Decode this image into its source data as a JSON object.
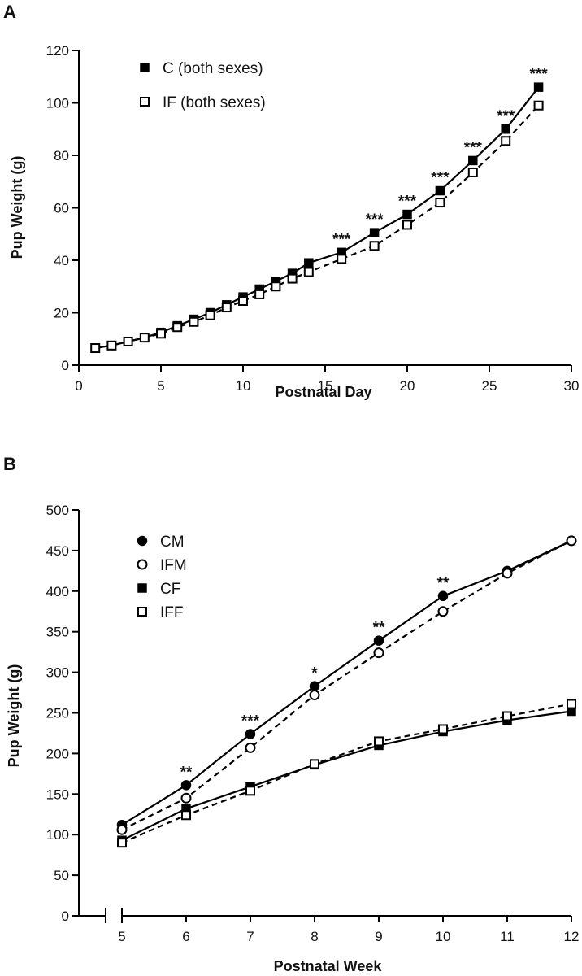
{
  "chart_data": [
    {
      "panel": "A",
      "type": "line",
      "xlabel": "Postnatal Day",
      "ylabel": "Pup Weight (g)",
      "xlim": [
        0,
        30
      ],
      "ylim": [
        0,
        120
      ],
      "xticks": [
        0,
        5,
        10,
        15,
        20,
        25,
        30
      ],
      "yticks": [
        0,
        20,
        40,
        60,
        80,
        100,
        120
      ],
      "grid": false,
      "legend_position": "top-left",
      "series": [
        {
          "name": "C (both sexes)",
          "marker": "filled-square",
          "line": "solid",
          "x": [
            1,
            2,
            3,
            4,
            5,
            6,
            7,
            8,
            9,
            10,
            11,
            12,
            13,
            14,
            16,
            18,
            20,
            22,
            24,
            26,
            28
          ],
          "y": [
            6.5,
            7.5,
            9,
            10.5,
            12.5,
            15,
            17.5,
            20,
            23,
            26,
            29,
            32,
            35,
            39,
            43,
            50.5,
            57.5,
            66.5,
            78,
            90,
            106
          ]
        },
        {
          "name": "IF (both sexes)",
          "marker": "open-square",
          "line": "dashed",
          "x": [
            1,
            2,
            3,
            4,
            5,
            6,
            7,
            8,
            9,
            10,
            11,
            12,
            13,
            14,
            16,
            18,
            20,
            22,
            24,
            26,
            28
          ],
          "y": [
            6.5,
            7.5,
            9,
            10.5,
            12,
            14.5,
            16.5,
            19,
            22,
            24.5,
            27,
            30,
            33,
            35.5,
            40.5,
            45.5,
            53.5,
            62,
            73.5,
            85.5,
            99
          ]
        }
      ],
      "annotations": [
        {
          "x": 16,
          "y": 43,
          "text": "***"
        },
        {
          "x": 18,
          "y": 50.5,
          "text": "***"
        },
        {
          "x": 20,
          "y": 57.5,
          "text": "***"
        },
        {
          "x": 22,
          "y": 66.5,
          "text": "***"
        },
        {
          "x": 24,
          "y": 78,
          "text": "***"
        },
        {
          "x": 26,
          "y": 90,
          "text": "***"
        },
        {
          "x": 28,
          "y": 106,
          "text": "***"
        }
      ]
    },
    {
      "panel": "B",
      "type": "line",
      "xlabel": "Postnatal Week",
      "ylabel": "Pup Weight (g)",
      "xlim": [
        4,
        12
      ],
      "ylim": [
        0,
        500
      ],
      "axis_break_x": true,
      "xticks": [
        5,
        6,
        7,
        8,
        9,
        10,
        11,
        12
      ],
      "yticks": [
        0,
        50,
        100,
        150,
        200,
        250,
        300,
        350,
        400,
        450,
        500
      ],
      "grid": false,
      "legend_position": "top-left",
      "series": [
        {
          "name": "CM",
          "marker": "filled-circle",
          "line": "solid",
          "x": [
            5,
            6,
            7,
            8,
            9,
            10,
            11,
            12
          ],
          "y": [
            112,
            161,
            224,
            283,
            339,
            394,
            425,
            462
          ]
        },
        {
          "name": "IFM",
          "marker": "open-circle",
          "line": "dashed",
          "x": [
            5,
            6,
            7,
            8,
            9,
            10,
            11,
            12
          ],
          "y": [
            106,
            145,
            207,
            272,
            324,
            375,
            422,
            462
          ]
        },
        {
          "name": "CF",
          "marker": "filled-square",
          "line": "solid",
          "x": [
            5,
            6,
            7,
            8,
            9,
            10,
            11,
            12
          ],
          "y": [
            93,
            132,
            159,
            186,
            210,
            227,
            241,
            252
          ]
        },
        {
          "name": "IFF",
          "marker": "open-square",
          "line": "dashed",
          "x": [
            5,
            6,
            7,
            8,
            9,
            10,
            11,
            12
          ],
          "y": [
            90,
            124,
            154,
            187,
            215,
            230,
            246,
            261
          ]
        }
      ],
      "annotations": [
        {
          "x": 6,
          "y": 161,
          "text": "**"
        },
        {
          "x": 7,
          "y": 224,
          "text": "***"
        },
        {
          "x": 8,
          "y": 283,
          "text": "*"
        },
        {
          "x": 9,
          "y": 339,
          "text": "**"
        },
        {
          "x": 10,
          "y": 394,
          "text": "**"
        }
      ]
    }
  ]
}
